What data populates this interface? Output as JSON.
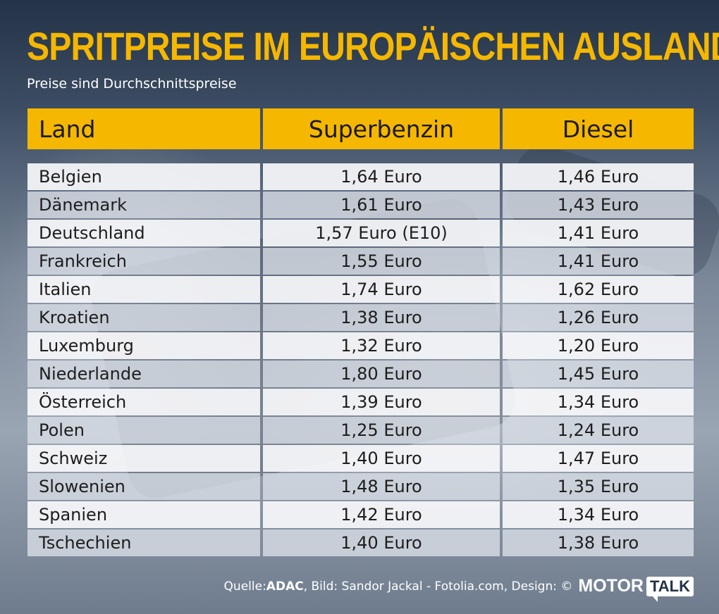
{
  "header": {
    "title": "SPRITPREISE IM EUROPÄISCHEN AUSLAND",
    "subtitle": "Preise sind Durchschnittspreise"
  },
  "table": {
    "columns": [
      "Land",
      "Superbenzin",
      "Diesel"
    ],
    "rows": [
      {
        "land": "Belgien",
        "superbenzin": "1,64 Euro",
        "diesel": "1,46 Euro"
      },
      {
        "land": "Dänemark",
        "superbenzin": "1,61 Euro",
        "diesel": "1,43 Euro"
      },
      {
        "land": "Deutschland",
        "superbenzin": "1,57 Euro (E10)",
        "diesel": "1,41 Euro"
      },
      {
        "land": "Frankreich",
        "superbenzin": "1,55 Euro",
        "diesel": "1,41 Euro"
      },
      {
        "land": "Italien",
        "superbenzin": "1,74 Euro",
        "diesel": "1,62 Euro"
      },
      {
        "land": "Kroatien",
        "superbenzin": "1,38 Euro",
        "diesel": "1,26 Euro"
      },
      {
        "land": "Luxemburg",
        "superbenzin": "1,32 Euro",
        "diesel": "1,20 Euro"
      },
      {
        "land": "Niederlande",
        "superbenzin": "1,80 Euro",
        "diesel": "1,45 Euro"
      },
      {
        "land": "Österreich",
        "superbenzin": "1,39 Euro",
        "diesel": "1,34 Euro"
      },
      {
        "land": "Polen",
        "superbenzin": "1,25 Euro",
        "diesel": "1,24 Euro"
      },
      {
        "land": "Schweiz",
        "superbenzin": "1,40 Euro",
        "diesel": "1,47 Euro"
      },
      {
        "land": "Slowenien",
        "superbenzin": "1,48 Euro",
        "diesel": "1,35 Euro"
      },
      {
        "land": "Spanien",
        "superbenzin": "1,42 Euro",
        "diesel": "1,34 Euro"
      },
      {
        "land": "Tschechien",
        "superbenzin": "1,40 Euro",
        "diesel": "1,38 Euro"
      }
    ]
  },
  "footer": {
    "source_prefix": "Quelle: ",
    "source": "ADAC",
    "credit": ", Bild: Sandor Jackal - Fotolia.com, Design: ©",
    "logo_part1": "MOTOR",
    "logo_part2": "TALK"
  },
  "colors": {
    "accent": "#f5b700",
    "background_dark": "#243347",
    "text_dark": "#1d1d1d"
  }
}
